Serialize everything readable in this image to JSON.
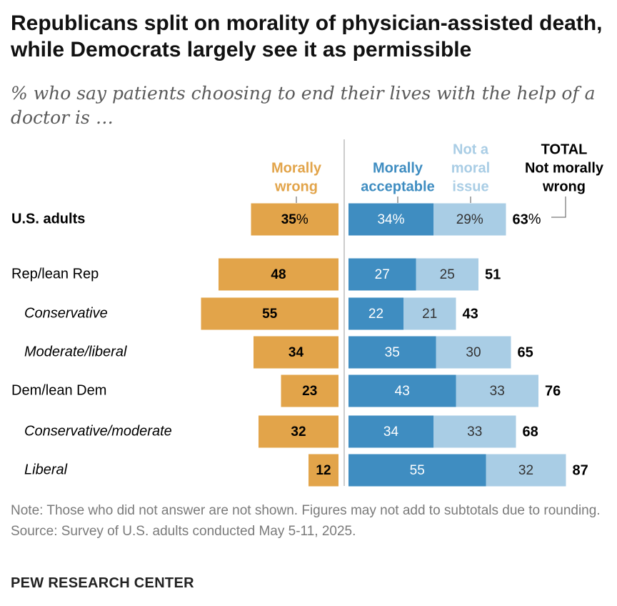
{
  "title": "Republicans split on morality of physician-assisted death, while Democrats largely see it as permissible",
  "subtitle": "% who say patients choosing to end their lives with the help of a doctor is …",
  "note": "Note: Those who did not answer are not shown. Figures may not add to subtotals due to rounding.",
  "source": "Source: Survey of U.S. adults conducted May 5-11, 2025.",
  "brand": "PEW RESEARCH CENTER",
  "colors": {
    "morally_wrong": "#E2A44A",
    "morally_acceptable": "#3F8DC1",
    "not_a_moral_issue": "#A9CDE5"
  },
  "chart_data": {
    "type": "bar",
    "orientation": "horizontal",
    "stacked": "diverging",
    "categories": [
      "U.S. adults",
      "Rep/lean Rep",
      "Conservative",
      "Moderate/liberal",
      "Dem/lean Dem",
      "Conservative/moderate",
      "Liberal"
    ],
    "series": [
      {
        "name": "Morally wrong",
        "header_lines": [
          "Morally",
          "wrong"
        ],
        "values": [
          35,
          48,
          55,
          34,
          23,
          32,
          12
        ]
      },
      {
        "name": "Morally acceptable",
        "header_lines": [
          "Morally",
          "acceptable"
        ],
        "values": [
          34,
          27,
          22,
          35,
          43,
          34,
          55
        ]
      },
      {
        "name": "Not a moral issue",
        "header_lines": [
          "Not a",
          "moral",
          "issue"
        ],
        "values": [
          29,
          25,
          21,
          30,
          33,
          33,
          32
        ]
      }
    ],
    "total": {
      "name": "TOTAL Not morally wrong",
      "header_lines": [
        "TOTAL",
        "Not morally",
        "wrong"
      ],
      "values": [
        63,
        51,
        43,
        65,
        76,
        68,
        87
      ]
    },
    "percent_sign_on_first_row": true
  }
}
